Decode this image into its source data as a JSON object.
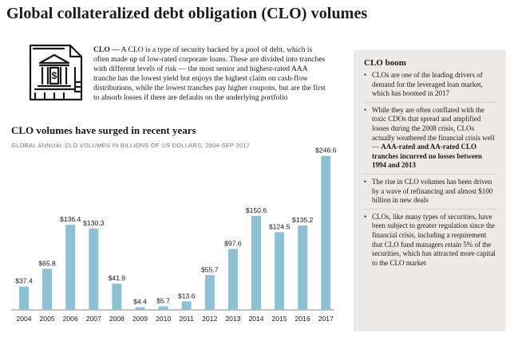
{
  "page": {
    "title": "Global collateralized debt obligation (CLO) volumes"
  },
  "definition": {
    "icon": "bank-document-icon",
    "term": "CLO —",
    "text": "A CLO is a type of security backed by a pool of debt, which is often made up of low-rated corporate loans. These are divided into tranches with different levels of risk — the most senior and highest-rated AAA tranche has the lowest yield but enjoys the highest claim on cash-flow distributions, while the lowest tranches pay higher coupons, but are the first to absorb losses if there are defaults on the underlying portfolio"
  },
  "sidebar": {
    "title": "CLO boom",
    "bullets": [
      {
        "text": "CLOs are one of the leading drivers of demand for the leveraged loan market, which has boomed in 2017",
        "bold": ""
      },
      {
        "text": "While they are often conflated with the toxic CDOs that spread and amplified losses during the 2008 crisis, CLOs actually weathered the financial crisis well — ",
        "bold": "AAA-rated and AA-rated CLO tranches incurred no losses between 1994 and 2013"
      },
      {
        "text": "The rise in CLO volumes has been driven by a wave of refinancing and almost $100 billion in new deals",
        "bold": ""
      },
      {
        "text": "CLOs, like many types of securities, have been subject to greater regulation since the financial crisis, including a requirement that CLO fund managers retain 5% of the securities, which has attracted more capital to the CLO market",
        "bold": ""
      }
    ]
  },
  "chart_data": {
    "type": "bar",
    "title": "CLO volumes have surged in recent years",
    "subtitle": "GLOBAL ANNUAL CLO VOLUMES IN BILLIONS OF US DOLLARS, 2004-SEP 2017",
    "categories": [
      "2004",
      "2005",
      "2006",
      "2007",
      "2008",
      "2009",
      "2010",
      "2011",
      "2012",
      "2013",
      "2014",
      "2015",
      "2016",
      "2017"
    ],
    "values": [
      37.4,
      65.8,
      136.4,
      130.3,
      41.9,
      4.4,
      5.7,
      13.6,
      55.7,
      97.6,
      150.6,
      124.5,
      135.2,
      246.6
    ],
    "labels": [
      "$37.4",
      "$65.8",
      "$136.4",
      "$130.3",
      "$41.9",
      "$4.4",
      "$5.7",
      "$13.6",
      "$55.7",
      "$97.6",
      "$150.6",
      "$124.5",
      "$135.2",
      "$246.6"
    ],
    "xlabel": "",
    "ylabel": "",
    "ylim": [
      0,
      250
    ],
    "grid": false,
    "colors": {
      "bar": "#8ec1d3",
      "axis": "#888888"
    }
  }
}
